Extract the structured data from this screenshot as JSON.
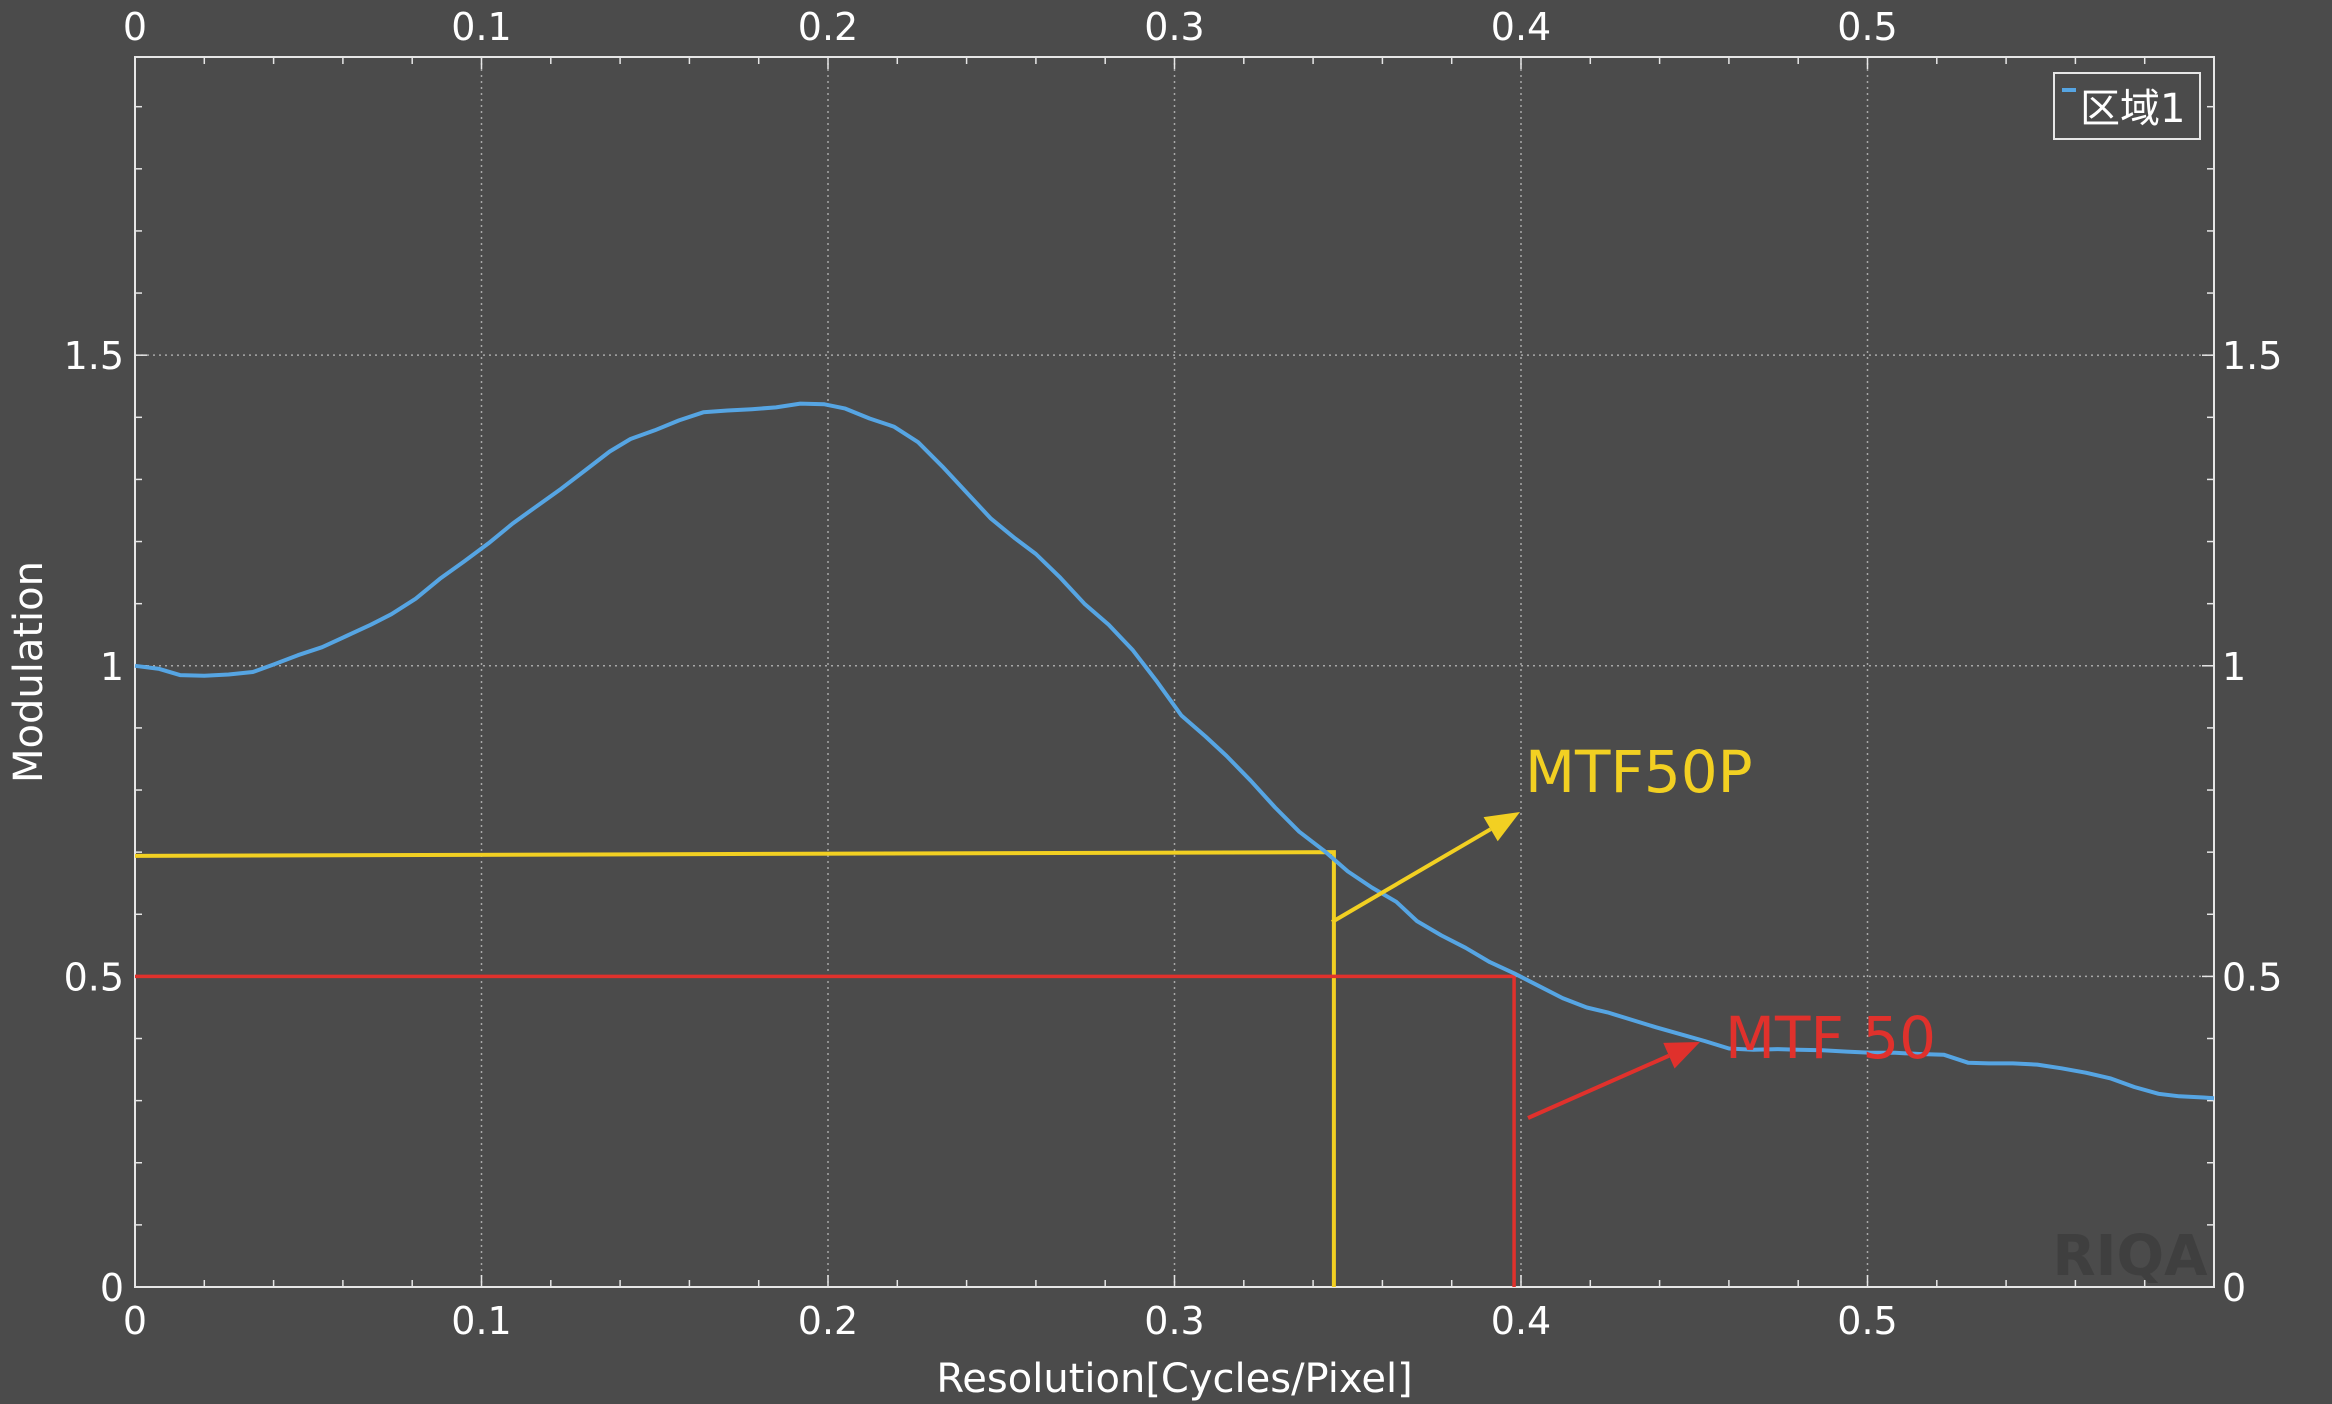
{
  "colors": {
    "background": "#4b4b4b",
    "axis": "#e6e6e6",
    "grid": "#a8a8a8",
    "series": "#56a5e3",
    "mtf50p": "#f2d022",
    "mtf50": "#e0312c"
  },
  "chart_data": {
    "type": "line",
    "xlabel": "Resolution[Cycles/Pixel]",
    "ylabel": "Modulation",
    "xlim": [
      0,
      0.6
    ],
    "ylim": [
      0,
      1.98
    ],
    "grid": true,
    "legend_position": "top-right",
    "x_ticks": [
      0,
      0.1,
      0.2,
      0.3,
      0.4,
      0.5
    ],
    "x_tick_labels": [
      "0",
      "0.1",
      "0.2",
      "0.3",
      "0.4",
      "0.5"
    ],
    "y_ticks": [
      0,
      0.5,
      1,
      1.5
    ],
    "y_tick_labels": [
      "0",
      "0.5",
      "1",
      "1.5"
    ],
    "series": [
      {
        "name": "区域1",
        "x": [
          0,
          0.007,
          0.013,
          0.02,
          0.027,
          0.034,
          0.04,
          0.047,
          0.054,
          0.061,
          0.068,
          0.074,
          0.081,
          0.088,
          0.095,
          0.102,
          0.109,
          0.116,
          0.123,
          0.13,
          0.137,
          0.143,
          0.15,
          0.157,
          0.164,
          0.171,
          0.178,
          0.185,
          0.192,
          0.199,
          0.205,
          0.212,
          0.219,
          0.226,
          0.233,
          0.24,
          0.247,
          0.254,
          0.26,
          0.267,
          0.274,
          0.281,
          0.288,
          0.295,
          0.302,
          0.309,
          0.315,
          0.322,
          0.329,
          0.336,
          0.343,
          0.35,
          0.357,
          0.364,
          0.37,
          0.377,
          0.384,
          0.391,
          0.398,
          0.405,
          0.412,
          0.419,
          0.425,
          0.432,
          0.439,
          0.446,
          0.453,
          0.46,
          0.467,
          0.474,
          0.48,
          0.487,
          0.494,
          0.501,
          0.508,
          0.515,
          0.522,
          0.529,
          0.535,
          0.542,
          0.549,
          0.556,
          0.563,
          0.57,
          0.577,
          0.584,
          0.59,
          0.597,
          0.6
        ],
        "values": [
          1.0,
          0.995,
          0.985,
          0.984,
          0.986,
          0.99,
          1.002,
          1.017,
          1.03,
          1.048,
          1.066,
          1.083,
          1.108,
          1.14,
          1.168,
          1.197,
          1.229,
          1.257,
          1.285,
          1.315,
          1.345,
          1.365,
          1.379,
          1.395,
          1.408,
          1.411,
          1.413,
          1.416,
          1.422,
          1.421,
          1.414,
          1.398,
          1.385,
          1.36,
          1.321,
          1.279,
          1.237,
          1.205,
          1.18,
          1.142,
          1.1,
          1.066,
          1.025,
          0.974,
          0.92,
          0.886,
          0.855,
          0.815,
          0.772,
          0.733,
          0.703,
          0.669,
          0.643,
          0.62,
          0.589,
          0.566,
          0.546,
          0.523,
          0.505,
          0.485,
          0.465,
          0.45,
          0.442,
          0.43,
          0.418,
          0.407,
          0.396,
          0.384,
          0.382,
          0.383,
          0.382,
          0.381,
          0.379,
          0.377,
          0.377,
          0.375,
          0.374,
          0.361,
          0.36,
          0.36,
          0.358,
          0.352,
          0.345,
          0.336,
          0.322,
          0.311,
          0.307,
          0.305,
          0.304
        ]
      }
    ],
    "annotations": [
      {
        "label": "MTF50P",
        "level": 0.7,
        "x_at_crossing": 0.346
      },
      {
        "label": "MTF 50",
        "level": 0.5,
        "x_at_crossing": 0.398
      }
    ],
    "watermark": "RIQA"
  }
}
